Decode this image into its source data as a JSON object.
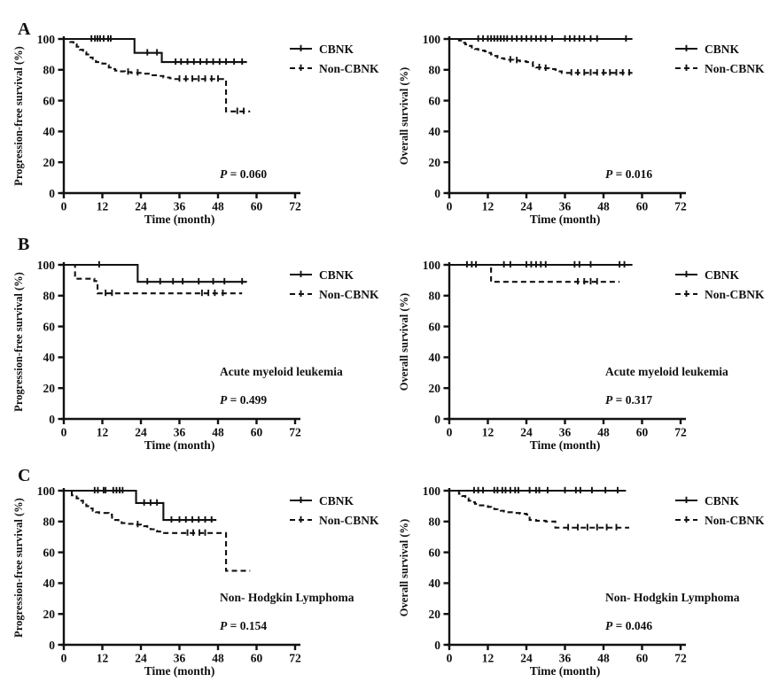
{
  "figure": {
    "background": "#ffffff",
    "ink_color": "#111111",
    "rows": [
      {
        "label": "A"
      },
      {
        "label": "B"
      },
      {
        "label": "C"
      }
    ]
  },
  "chart_data": [
    {
      "type": "line",
      "subtype": "kaplan-meier-step",
      "panel": "A-left",
      "ylabel": "Progression-free survival (%)",
      "xlabel": "Time (month)",
      "xlim": [
        0,
        72
      ],
      "xticks": [
        0,
        12,
        24,
        36,
        48,
        60,
        72
      ],
      "ylim": [
        0,
        100
      ],
      "yticks": [
        0,
        20,
        40,
        60,
        80,
        100
      ],
      "grid": false,
      "legend": [
        "CBNK",
        "Non-CBNK"
      ],
      "legend_position": "right",
      "annotation": "",
      "p_label": "P = 0.060",
      "series": [
        {
          "name": "CBNK",
          "line": "solid",
          "steps": [
            [
              0,
              100
            ],
            [
              22,
              91
            ],
            [
              30.5,
              85
            ],
            [
              57,
              85
            ]
          ],
          "censors": [
            8.6,
            9.7,
            10.5,
            11.3,
            12.4,
            13.8,
            14.6,
            26,
            29,
            34.8,
            36.5,
            38.5,
            40.5,
            42.5,
            44.5,
            46.5,
            48.5,
            50.5,
            53,
            55.5
          ]
        },
        {
          "name": "Non-CBNK",
          "line": "dashed",
          "steps": [
            [
              0,
              100
            ],
            [
              2,
              98
            ],
            [
              3,
              96.5
            ],
            [
              4,
              95
            ],
            [
              5,
              93
            ],
            [
              6,
              91.5
            ],
            [
              7,
              90
            ],
            [
              8,
              88
            ],
            [
              9,
              86.5
            ],
            [
              10,
              85
            ],
            [
              12,
              84
            ],
            [
              13,
              83
            ],
            [
              14,
              81.5
            ],
            [
              15,
              80.5
            ],
            [
              16,
              79.5
            ],
            [
              17,
              79
            ],
            [
              19,
              78.5
            ],
            [
              21,
              78
            ],
            [
              25,
              77.5
            ],
            [
              27,
              76.5
            ],
            [
              29,
              76
            ],
            [
              31,
              75
            ],
            [
              33,
              74.5
            ],
            [
              34,
              74
            ],
            [
              50.5,
              53
            ],
            [
              58,
              53
            ]
          ],
          "censors": [
            20,
            23,
            36,
            38,
            40,
            42,
            44,
            46,
            48,
            54,
            56
          ]
        }
      ]
    },
    {
      "type": "line",
      "subtype": "kaplan-meier-step",
      "panel": "A-right",
      "ylabel": "Overall survival (%)",
      "xlabel": "Time (month)",
      "xlim": [
        0,
        72
      ],
      "xticks": [
        0,
        12,
        24,
        36,
        48,
        60,
        72
      ],
      "ylim": [
        0,
        100
      ],
      "yticks": [
        0,
        20,
        40,
        60,
        80,
        100
      ],
      "grid": false,
      "legend": [
        "CBNK",
        "Non-CBNK"
      ],
      "legend_position": "right",
      "annotation": "",
      "p_label": "P = 0.016",
      "series": [
        {
          "name": "CBNK",
          "line": "solid",
          "steps": [
            [
              0,
              100
            ],
            [
              57,
              100
            ]
          ],
          "censors": [
            9,
            10.5,
            12,
            13,
            14,
            15,
            16,
            17,
            18,
            19.5,
            21,
            22.5,
            24,
            25.5,
            27,
            28.5,
            30,
            32,
            36,
            37.5,
            39,
            40.5,
            42,
            44,
            46,
            55
          ]
        },
        {
          "name": "Non-CBNK",
          "line": "dashed",
          "steps": [
            [
              0,
              100
            ],
            [
              3,
              99
            ],
            [
              4,
              97.5
            ],
            [
              5,
              96.5
            ],
            [
              6,
              95.5
            ],
            [
              7,
              94.5
            ],
            [
              8,
              93.5
            ],
            [
              9,
              93
            ],
            [
              10,
              92.5
            ],
            [
              11,
              92
            ],
            [
              12,
              91
            ],
            [
              13,
              90
            ],
            [
              14,
              89
            ],
            [
              15,
              88
            ],
            [
              16,
              87.5
            ],
            [
              17,
              87
            ],
            [
              18,
              86.5
            ],
            [
              20,
              86
            ],
            [
              22,
              85.5
            ],
            [
              24,
              85
            ],
            [
              26,
              82.5
            ],
            [
              27,
              81.5
            ],
            [
              29,
              81
            ],
            [
              31,
              80.5
            ],
            [
              33,
              80
            ],
            [
              34,
              79
            ],
            [
              35,
              78
            ],
            [
              57,
              78
            ]
          ],
          "censors": [
            19,
            21,
            28,
            30,
            38,
            40,
            42,
            44,
            46,
            48,
            50,
            52,
            54,
            56
          ]
        }
      ]
    },
    {
      "type": "line",
      "subtype": "kaplan-meier-step",
      "panel": "B-left",
      "ylabel": "Progression-free survival (%)",
      "xlabel": "Time (month)",
      "xlim": [
        0,
        72
      ],
      "xticks": [
        0,
        12,
        24,
        36,
        48,
        60,
        72
      ],
      "ylim": [
        0,
        100
      ],
      "yticks": [
        0,
        20,
        40,
        60,
        80,
        100
      ],
      "grid": false,
      "legend": [
        "CBNK",
        "Non-CBNK"
      ],
      "legend_position": "right",
      "annotation": "Acute myeloid leukemia",
      "p_label": "P = 0.499",
      "series": [
        {
          "name": "CBNK",
          "line": "solid",
          "steps": [
            [
              0,
              100
            ],
            [
              23,
              89
            ],
            [
              57,
              89
            ]
          ],
          "censors": [
            11,
            26,
            30,
            34,
            37,
            42,
            46.5,
            50,
            55.5
          ]
        },
        {
          "name": "Non-CBNK",
          "line": "dashed",
          "steps": [
            [
              0,
              100
            ],
            [
              3.5,
              91
            ],
            [
              9.5,
              89.5
            ],
            [
              10.5,
              81.5
            ],
            [
              55.5,
              81.5
            ]
          ],
          "censors": [
            13,
            15,
            43,
            45,
            47,
            49.5
          ]
        }
      ]
    },
    {
      "type": "line",
      "subtype": "kaplan-meier-step",
      "panel": "B-right",
      "ylabel": "Overall survival (%)",
      "xlabel": "Time (month)",
      "xlim": [
        0,
        72
      ],
      "xticks": [
        0,
        12,
        24,
        36,
        48,
        60,
        72
      ],
      "ylim": [
        0,
        100
      ],
      "yticks": [
        0,
        20,
        40,
        60,
        80,
        100
      ],
      "grid": false,
      "legend": [
        "CBNK",
        "Non-CBNK"
      ],
      "legend_position": "right",
      "annotation": "Acute myeloid leukemia",
      "p_label": "P = 0.317",
      "series": [
        {
          "name": "CBNK",
          "line": "solid",
          "steps": [
            [
              0,
              100
            ],
            [
              57,
              100
            ]
          ],
          "censors": [
            5.5,
            7,
            8.3,
            17,
            19,
            24,
            25.5,
            27,
            28.5,
            30,
            39,
            40.5,
            44,
            53,
            54.5
          ]
        },
        {
          "name": "Non-CBNK",
          "line": "dashed",
          "steps": [
            [
              0,
              100
            ],
            [
              13,
              89
            ],
            [
              53,
              89
            ]
          ],
          "censors": [
            40,
            42,
            44,
            46
          ]
        }
      ]
    },
    {
      "type": "line",
      "subtype": "kaplan-meier-step",
      "panel": "C-left",
      "ylabel": "Progression-free survival (%)",
      "xlabel": "Time (month)",
      "xlim": [
        0,
        72
      ],
      "xticks": [
        0,
        12,
        24,
        36,
        48,
        60,
        72
      ],
      "ylim": [
        0,
        100
      ],
      "yticks": [
        0,
        20,
        40,
        60,
        80,
        100
      ],
      "grid": false,
      "legend": [
        "CBNK",
        "Non-CBNK"
      ],
      "legend_position": "right",
      "annotation": "Non- Hodgkin Lymphoma",
      "p_label": "P = 0.154",
      "series": [
        {
          "name": "CBNK",
          "line": "solid",
          "steps": [
            [
              0,
              100
            ],
            [
              22.5,
              92
            ],
            [
              31,
              81
            ],
            [
              47.5,
              81
            ]
          ],
          "censors": [
            9.6,
            10.6,
            12.4,
            13,
            15.4,
            16.4,
            17.4,
            18.3,
            25,
            27,
            29,
            33.5,
            36,
            38,
            40,
            42,
            44,
            46
          ]
        },
        {
          "name": "Non-CBNK",
          "line": "dashed",
          "steps": [
            [
              0,
              100
            ],
            [
              2.5,
              97
            ],
            [
              4,
              95
            ],
            [
              5,
              93.5
            ],
            [
              6,
              92
            ],
            [
              7,
              90
            ],
            [
              8,
              88.5
            ],
            [
              9,
              87
            ],
            [
              10,
              86
            ],
            [
              11,
              85.5
            ],
            [
              14,
              84.5
            ],
            [
              15,
              82.5
            ],
            [
              16,
              81
            ],
            [
              17,
              79.5
            ],
            [
              18,
              79
            ],
            [
              20,
              78.5
            ],
            [
              22,
              78
            ],
            [
              24,
              77.5
            ],
            [
              25,
              77
            ],
            [
              26,
              76
            ],
            [
              27,
              75
            ],
            [
              28,
              74
            ],
            [
              29,
              73.5
            ],
            [
              30,
              72.5
            ],
            [
              50.5,
              48
            ],
            [
              58,
              48
            ]
          ],
          "censors": [
            23,
            38.5,
            40.3,
            42.2,
            44
          ]
        }
      ]
    },
    {
      "type": "line",
      "subtype": "kaplan-meier-step",
      "panel": "C-right",
      "ylabel": "Overall survival (%)",
      "xlabel": "Time (month)",
      "xlim": [
        0,
        72
      ],
      "xticks": [
        0,
        12,
        24,
        36,
        48,
        60,
        72
      ],
      "ylim": [
        0,
        100
      ],
      "yticks": [
        0,
        20,
        40,
        60,
        80,
        100
      ],
      "grid": false,
      "legend": [
        "CBNK",
        "Non-CBNK"
      ],
      "legend_position": "right",
      "annotation": "Non- Hodgkin Lymphoma",
      "p_label": "P = 0.046",
      "series": [
        {
          "name": "CBNK",
          "line": "solid",
          "steps": [
            [
              0,
              100
            ],
            [
              55,
              100
            ]
          ],
          "censors": [
            7.7,
            9,
            10.5,
            14,
            15,
            16.5,
            17.5,
            19,
            20.5,
            21.5,
            25,
            27,
            28,
            30.6,
            36,
            39.4,
            40.8,
            44.4,
            48.6,
            52.4
          ]
        },
        {
          "name": "Non-CBNK",
          "line": "dashed",
          "steps": [
            [
              0,
              100
            ],
            [
              3,
              98
            ],
            [
              4,
              96.5
            ],
            [
              5,
              95
            ],
            [
              6,
              93.5
            ],
            [
              7,
              92.5
            ],
            [
              8,
              91.5
            ],
            [
              9,
              90.5
            ],
            [
              11,
              90
            ],
            [
              12,
              89.5
            ],
            [
              13,
              89
            ],
            [
              14,
              88
            ],
            [
              15,
              87.5
            ],
            [
              16,
              87
            ],
            [
              17,
              86.5
            ],
            [
              18,
              86
            ],
            [
              20,
              85.5
            ],
            [
              22,
              85
            ],
            [
              24,
              84.5
            ],
            [
              25,
              81
            ],
            [
              27,
              80.5
            ],
            [
              30,
              80
            ],
            [
              33,
              76
            ],
            [
              56,
              76
            ]
          ],
          "censors": [
            37,
            40,
            43,
            46,
            49,
            52
          ]
        }
      ]
    }
  ]
}
